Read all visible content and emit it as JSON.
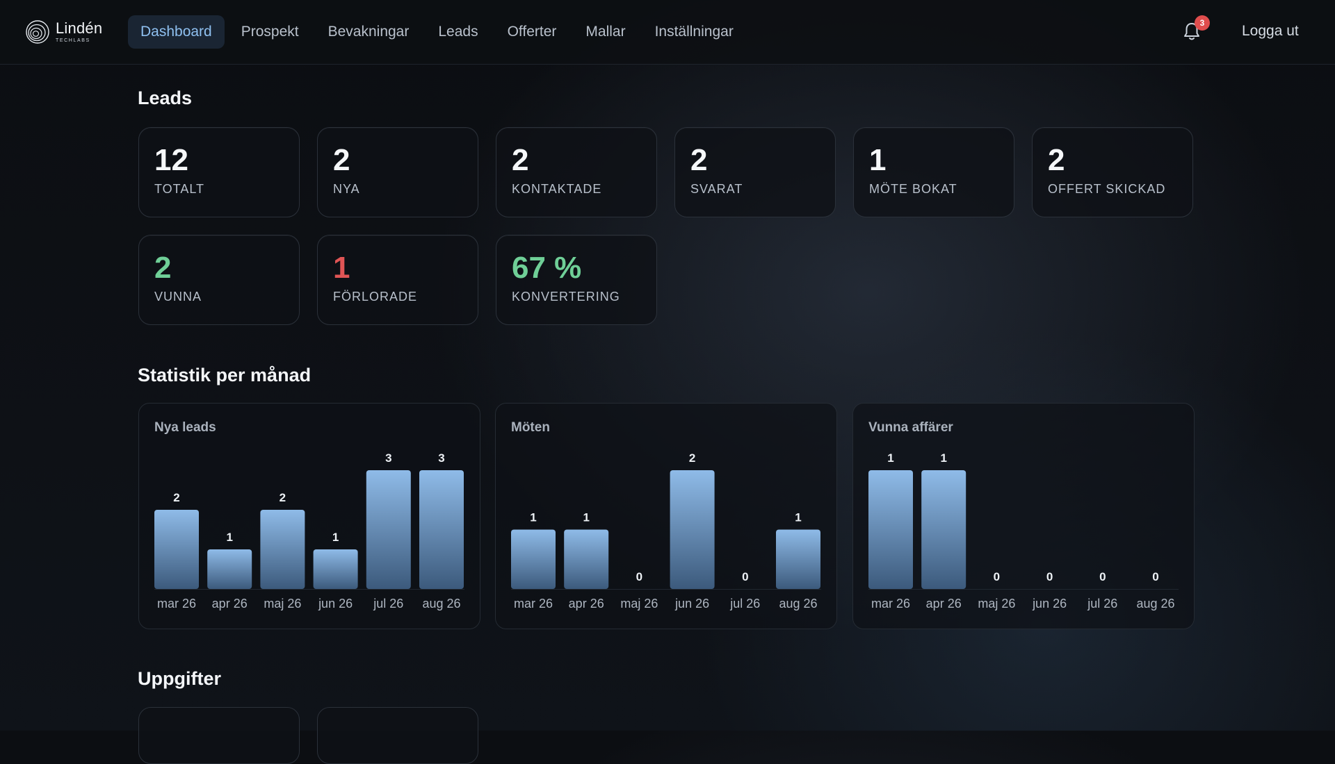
{
  "brand": {
    "name": "Lindén",
    "sub": "TECHLABS"
  },
  "nav": [
    "Dashboard",
    "Prospekt",
    "Bevakningar",
    "Leads",
    "Offerter",
    "Mallar",
    "Inställningar"
  ],
  "notifications": {
    "count": "3"
  },
  "logout_label": "Logga ut",
  "leads": {
    "title": "Leads",
    "stats": [
      {
        "value": "12",
        "label": "TOTALT"
      },
      {
        "value": "2",
        "label": "NYA"
      },
      {
        "value": "2",
        "label": "KONTAKTADE"
      },
      {
        "value": "2",
        "label": "SVARAT"
      },
      {
        "value": "1",
        "label": "MÖTE BOKAT"
      },
      {
        "value": "2",
        "label": "OFFERT SKICKAD"
      },
      {
        "value": "2",
        "label": "VUNNA",
        "color": "#6fcf97"
      },
      {
        "value": "1",
        "label": "FÖRLORADE",
        "color": "#e05555"
      },
      {
        "value": "67 %",
        "label": "KONVERTERING",
        "color": "#6fcf97"
      }
    ]
  },
  "stats_title": "Statistik per månad",
  "tasks_title": "Uppgifter",
  "chart_data": [
    {
      "type": "bar",
      "title": "Nya leads",
      "categories": [
        "mar 26",
        "apr 26",
        "maj 26",
        "jun 26",
        "jul 26",
        "aug 26"
      ],
      "values": [
        2,
        1,
        2,
        1,
        3,
        3
      ],
      "max": 3
    },
    {
      "type": "bar",
      "title": "Möten",
      "categories": [
        "mar 26",
        "apr 26",
        "maj 26",
        "jun 26",
        "jul 26",
        "aug 26"
      ],
      "values": [
        1,
        1,
        0,
        2,
        0,
        1
      ],
      "max": 2
    },
    {
      "type": "bar",
      "title": "Vunna affärer",
      "categories": [
        "mar 26",
        "apr 26",
        "maj 26",
        "jun 26",
        "jul 26",
        "aug 26"
      ],
      "values": [
        1,
        1,
        0,
        0,
        0,
        0
      ],
      "max": 1
    }
  ],
  "colors": {
    "accent": "#8fc0f0",
    "bar_top": "#8fbbe8",
    "bar_bottom": "#3c5a7c",
    "positive": "#6fcf97",
    "negative": "#e05555"
  }
}
